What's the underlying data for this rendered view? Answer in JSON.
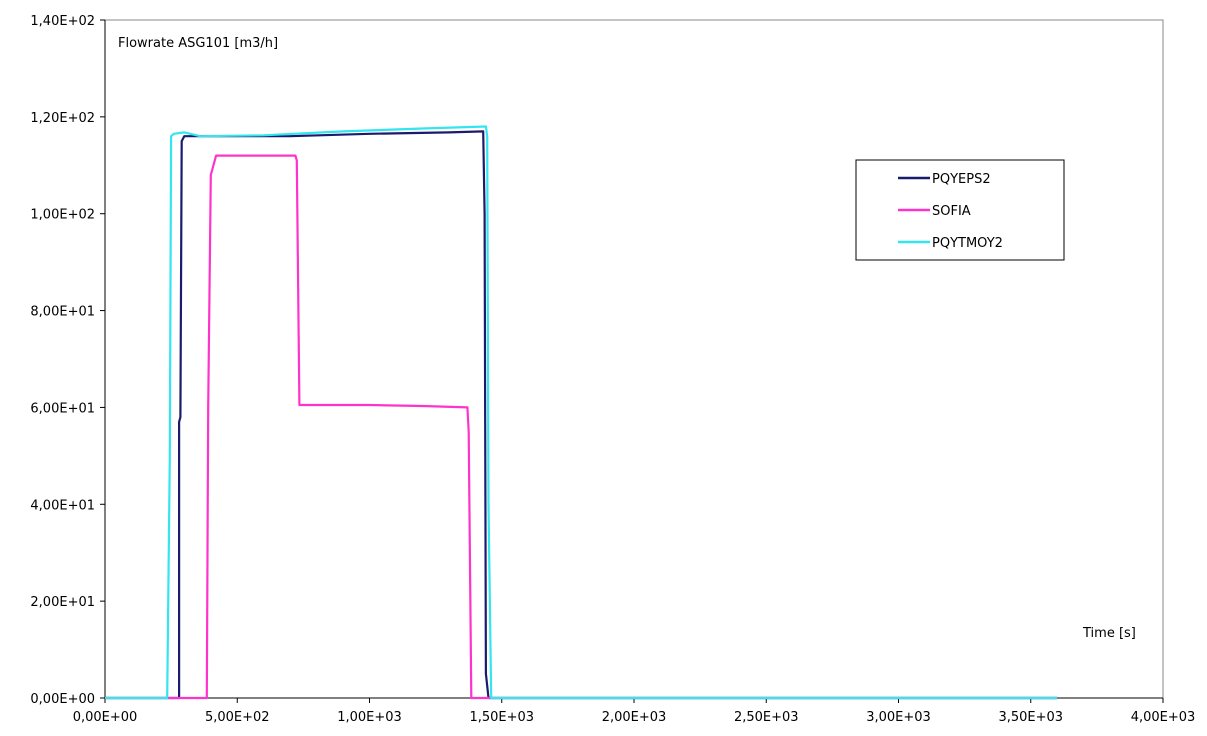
{
  "chart_data": {
    "type": "line",
    "title": "Flowrate ASG101 [m3/h]",
    "xlabel": "Time [s]",
    "ylabel": "",
    "xlim": [
      0,
      4000
    ],
    "ylim": [
      0,
      140
    ],
    "x_ticks": [
      0,
      500,
      1000,
      1500,
      2000,
      2500,
      3000,
      3500,
      4000
    ],
    "x_tick_labels": [
      "0,00E+00",
      "5,00E+02",
      "1,00E+03",
      "1,50E+03",
      "2,00E+03",
      "2,50E+03",
      "3,00E+03",
      "3,50E+03",
      "4,00E+03"
    ],
    "y_ticks": [
      0,
      20,
      40,
      60,
      80,
      100,
      120,
      140
    ],
    "y_tick_labels": [
      "0,00E+00",
      "2,00E+01",
      "4,00E+01",
      "6,00E+01",
      "8,00E+01",
      "1,00E+02",
      "1,20E+02",
      "1,40E+02"
    ],
    "grid": false,
    "legend_position": "upper-right",
    "series": [
      {
        "name": "PQYEPS2",
        "color": "#1a1a6e",
        "x": [
          0,
          270,
          280,
          280,
          285,
          290,
          300,
          320,
          700,
          1000,
          1300,
          1430,
          1435,
          1440,
          1450,
          3600
        ],
        "y": [
          0,
          0,
          0,
          57,
          58,
          115,
          116,
          116,
          116,
          116.5,
          116.8,
          117,
          100,
          5,
          0,
          0
        ]
      },
      {
        "name": "SOFIA",
        "color": "#ff33cc",
        "x": [
          0,
          385,
          390,
          400,
          420,
          720,
          725,
          735,
          1000,
          1200,
          1370,
          1375,
          1385,
          1450,
          3600
        ],
        "y": [
          0,
          0,
          60,
          108,
          112,
          112,
          111,
          60.5,
          60.5,
          60.3,
          60,
          55,
          0,
          0,
          0
        ]
      },
      {
        "name": "PQYTMOY2",
        "color": "#33e5ee",
        "x": [
          0,
          235,
          245,
          250,
          260,
          300,
          360,
          600,
          900,
          1200,
          1440,
          1445,
          1450,
          1460,
          1500,
          3600
        ],
        "y": [
          0,
          0,
          50,
          116,
          116.5,
          116.8,
          116,
          116.2,
          117,
          117.6,
          118,
          116,
          40,
          0,
          0,
          0
        ]
      }
    ]
  }
}
